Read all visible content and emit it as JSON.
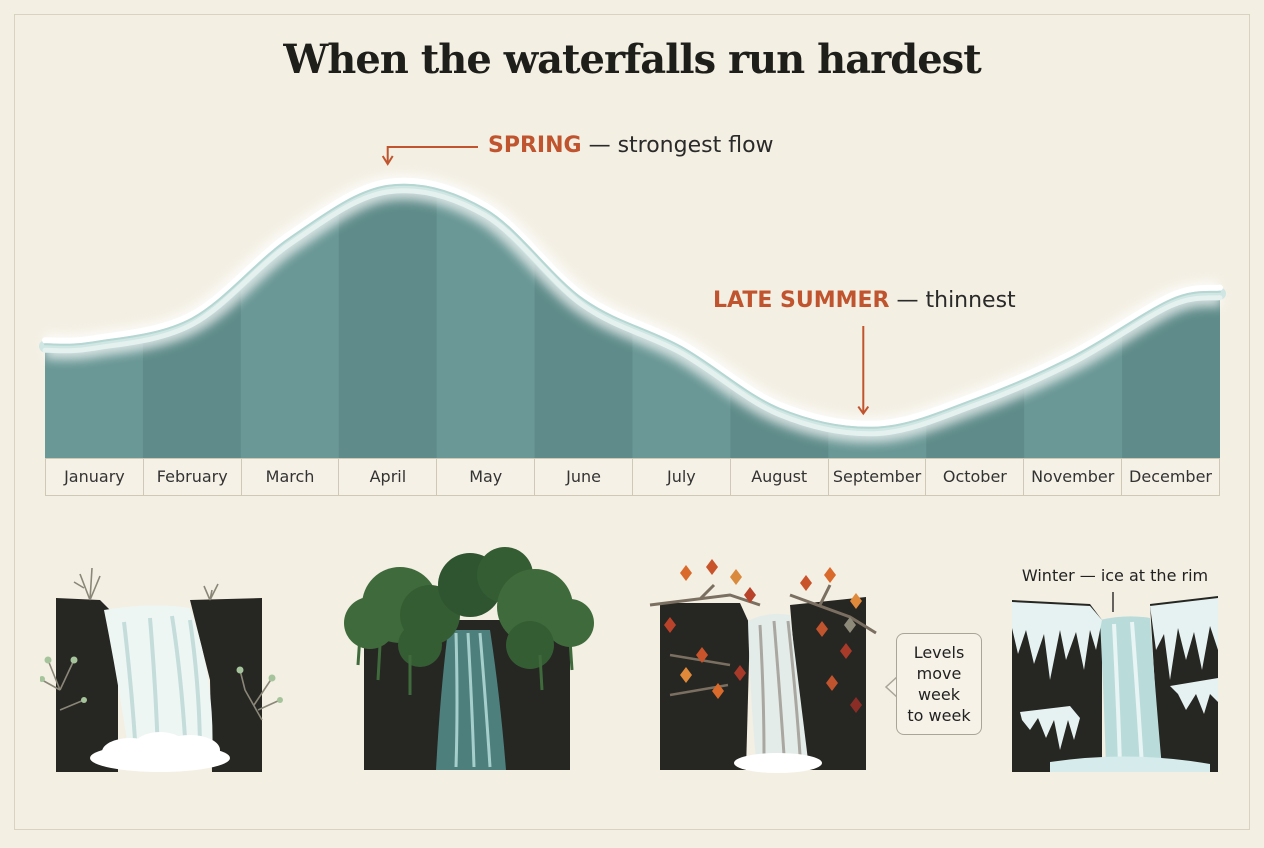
{
  "chart_data": {
    "type": "area",
    "title": "When the waterfalls run hardest",
    "categories": [
      "January",
      "February",
      "March",
      "April",
      "May",
      "June",
      "July",
      "August",
      "September",
      "October",
      "November",
      "December"
    ],
    "series": [
      {
        "values": [
          2.4,
          2.9,
          4.6,
          5.7,
          5.2,
          3.3,
          2.3,
          1.0,
          0.6,
          1.2,
          2.1,
          3.3
        ]
      }
    ],
    "ylim": [
      0,
      6.5
    ],
    "annotations": [
      {
        "target": "April",
        "highlight": "SPRING",
        "text": "— strongest flow"
      },
      {
        "target": "September",
        "highlight": "LATE SUMMER",
        "text": "— thinnest"
      }
    ],
    "grid": false,
    "legend": "none"
  },
  "colors": {
    "background": "#f3efe3",
    "water": "#6a9896",
    "water_dark": "#5f8c8a",
    "foam": "#e4f1ef",
    "accent": "#c0542e",
    "rock": "#262622"
  },
  "panels": [
    {
      "season": "spring",
      "icon": "spring-waterfall-icon"
    },
    {
      "season": "summer",
      "icon": "summer-waterfall-icon"
    },
    {
      "season": "autumn",
      "icon": "autumn-waterfall-icon"
    },
    {
      "season": "winter",
      "icon": "winter-waterfall-icon"
    }
  ],
  "notes": {
    "bubble": [
      "Levels",
      "move",
      "week",
      "to week"
    ],
    "winter_label": "Winter — ice at the rim"
  }
}
